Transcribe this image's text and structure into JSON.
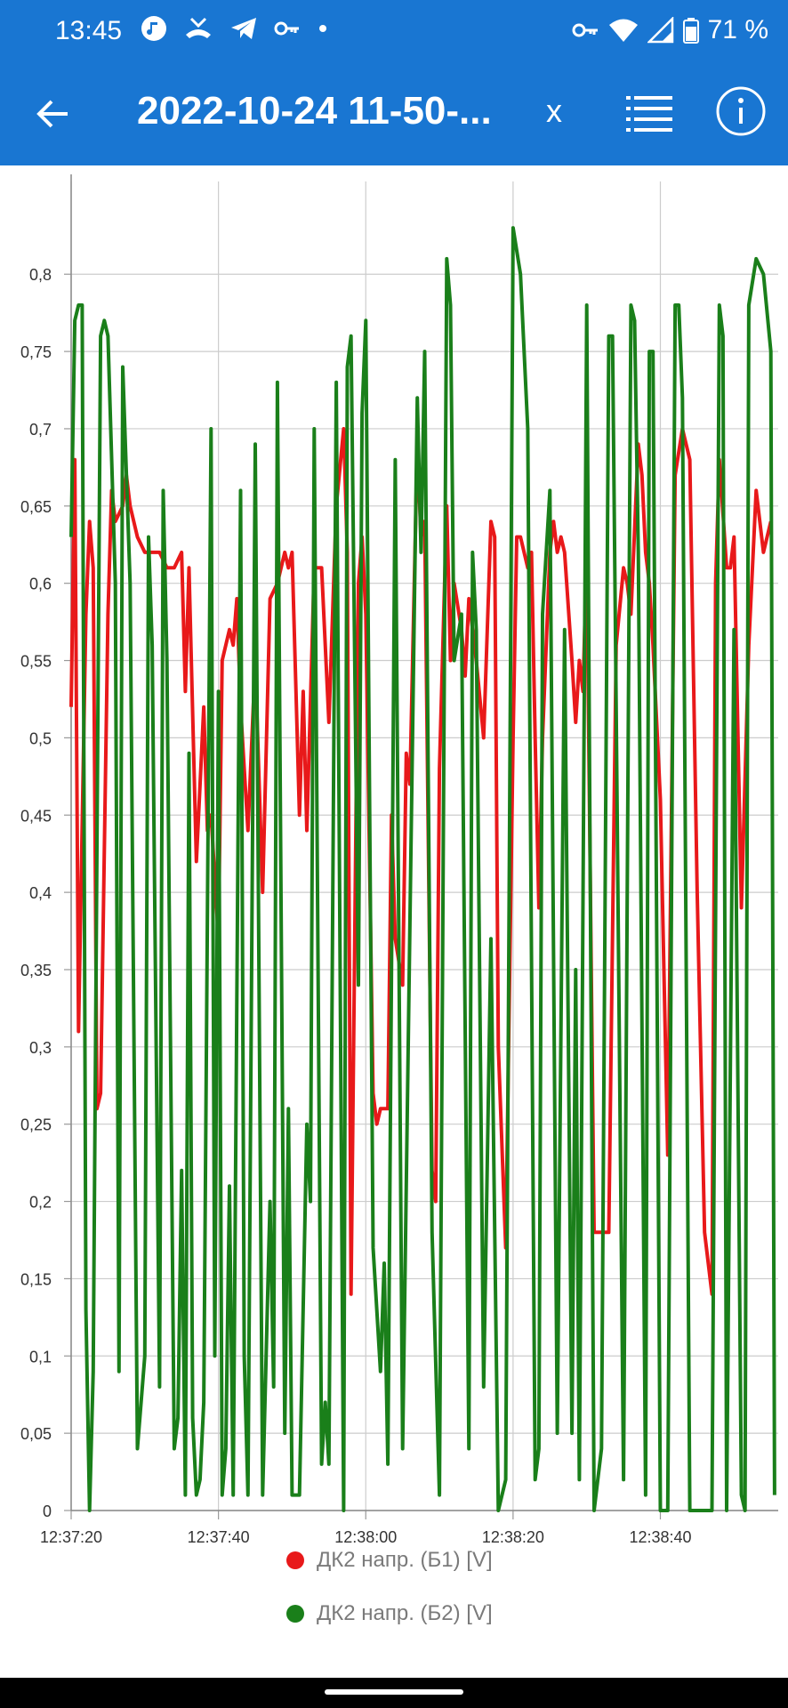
{
  "status_bar": {
    "time": "13:45",
    "left_icons": [
      "music-icon",
      "call-missed-icon",
      "telegram-icon",
      "key-icon",
      "dot-icon"
    ],
    "right_icons": [
      "vpn-key-icon",
      "wifi-icon",
      "signal-icon",
      "battery-icon"
    ],
    "battery": "71 %"
  },
  "app_bar": {
    "title": "2022-10-24 11-50-...",
    "close_label": "x",
    "icons": {
      "back": "arrow-back-icon",
      "list": "list-icon",
      "info": "info-icon"
    }
  },
  "chart_data": {
    "type": "line",
    "title": "",
    "xlabel": "",
    "ylabel": "",
    "x_ticks": [
      "12:37:20",
      "12:37:40",
      "12:38:00",
      "12:38:20",
      "12:38:40"
    ],
    "y_ticks": [
      "0",
      "0,05",
      "0,1",
      "0,15",
      "0,2",
      "0,25",
      "0,3",
      "0,35",
      "0,4",
      "0,45",
      "0,5",
      "0,55",
      "0,6",
      "0,65",
      "0,7",
      "0,75",
      "0,8"
    ],
    "xlim": [
      "12:37:20",
      "12:38:56"
    ],
    "ylim": [
      0,
      0.86
    ],
    "grid": true,
    "legend_position": "bottom",
    "series": [
      {
        "name": "ДК2 напр. (Б1) [V]",
        "color": "#e8191a",
        "points": [
          [
            "12:37:20",
            0.52
          ],
          [
            "12:37:20.5",
            0.68
          ],
          [
            "12:37:21",
            0.31
          ],
          [
            "12:37:22",
            0.58
          ],
          [
            "12:37:22.5",
            0.64
          ],
          [
            "12:37:23",
            0.61
          ],
          [
            "12:37:23.5",
            0.26
          ],
          [
            "12:37:24",
            0.27
          ],
          [
            "12:37:25",
            0.58
          ],
          [
            "12:37:25.5",
            0.66
          ],
          [
            "12:37:26",
            0.64
          ],
          [
            "12:37:27",
            0.65
          ],
          [
            "12:37:27.5",
            0.67
          ],
          [
            "12:37:28",
            0.65
          ],
          [
            "12:37:29",
            0.63
          ],
          [
            "12:37:30",
            0.62
          ],
          [
            "12:37:31",
            0.62
          ],
          [
            "12:37:32",
            0.62
          ],
          [
            "12:37:33",
            0.61
          ],
          [
            "12:37:34",
            0.61
          ],
          [
            "12:37:35",
            0.62
          ],
          [
            "12:37:35.5",
            0.53
          ],
          [
            "12:37:36",
            0.61
          ],
          [
            "12:37:37",
            0.42
          ],
          [
            "12:37:38",
            0.52
          ],
          [
            "12:37:38.5",
            0.44
          ],
          [
            "12:37:39",
            0.45
          ],
          [
            "12:37:40",
            0.37
          ],
          [
            "12:37:40.5",
            0.55
          ],
          [
            "12:37:41",
            0.56
          ],
          [
            "12:37:41.5",
            0.57
          ],
          [
            "12:37:42",
            0.56
          ],
          [
            "12:37:42.5",
            0.59
          ],
          [
            "12:37:43",
            0.52
          ],
          [
            "12:37:43.5",
            0.48
          ],
          [
            "12:37:44",
            0.44
          ],
          [
            "12:37:45",
            0.55
          ],
          [
            "12:37:46",
            0.4
          ],
          [
            "12:37:47",
            0.59
          ],
          [
            "12:37:48",
            0.6
          ],
          [
            "12:37:49",
            0.62
          ],
          [
            "12:37:49.5",
            0.61
          ],
          [
            "12:37:50",
            0.62
          ],
          [
            "12:37:51",
            0.45
          ],
          [
            "12:37:51.5",
            0.53
          ],
          [
            "12:37:52",
            0.44
          ],
          [
            "12:37:53",
            0.61
          ],
          [
            "12:37:54",
            0.61
          ],
          [
            "12:37:55",
            0.51
          ],
          [
            "12:37:56",
            0.65
          ],
          [
            "12:37:57",
            0.7
          ],
          [
            "12:37:57.5",
            0.62
          ],
          [
            "12:37:58",
            0.14
          ],
          [
            "12:37:59",
            0.6
          ],
          [
            "12:37:59.5",
            0.63
          ],
          [
            "12:38:00",
            0.58
          ],
          [
            "12:38:01",
            0.27
          ],
          [
            "12:38:01.5",
            0.25
          ],
          [
            "12:38:02",
            0.26
          ],
          [
            "12:38:03",
            0.26
          ],
          [
            "12:38:03.5",
            0.45
          ],
          [
            "12:38:04",
            0.37
          ],
          [
            "12:38:05",
            0.34
          ],
          [
            "12:38:05.5",
            0.49
          ],
          [
            "12:38:06",
            0.47
          ],
          [
            "12:38:07",
            0.69
          ],
          [
            "12:38:07.5",
            0.63
          ],
          [
            "12:38:08",
            0.64
          ],
          [
            "12:38:09",
            0.22
          ],
          [
            "12:38:09.5",
            0.2
          ],
          [
            "12:38:10",
            0.48
          ],
          [
            "12:38:11",
            0.65
          ],
          [
            "12:38:11.5",
            0.55
          ],
          [
            "12:38:12",
            0.6
          ],
          [
            "12:38:13",
            0.57
          ],
          [
            "12:38:13.5",
            0.54
          ],
          [
            "12:38:14",
            0.59
          ],
          [
            "12:38:15",
            0.55
          ],
          [
            "12:38:16",
            0.5
          ],
          [
            "12:38:17",
            0.64
          ],
          [
            "12:38:17.5",
            0.63
          ],
          [
            "12:38:18",
            0.3
          ],
          [
            "12:38:19",
            0.17
          ],
          [
            "12:38:20",
            0.5
          ],
          [
            "12:38:20.5",
            0.63
          ],
          [
            "12:38:21",
            0.63
          ],
          [
            "12:38:22",
            0.61
          ],
          [
            "12:38:22.5",
            0.62
          ],
          [
            "12:38:23",
            0.5
          ],
          [
            "12:38:23.5",
            0.39
          ],
          [
            "12:38:24",
            0.5
          ],
          [
            "12:38:25",
            0.62
          ],
          [
            "12:38:25.5",
            0.64
          ],
          [
            "12:38:26",
            0.62
          ],
          [
            "12:38:26.5",
            0.63
          ],
          [
            "12:38:27",
            0.62
          ],
          [
            "12:38:28",
            0.55
          ],
          [
            "12:38:28.5",
            0.51
          ],
          [
            "12:38:29",
            0.55
          ],
          [
            "12:38:29.5",
            0.53
          ],
          [
            "12:38:30",
            0.62
          ],
          [
            "12:38:31",
            0.18
          ],
          [
            "12:38:32",
            0.18
          ],
          [
            "12:38:33",
            0.18
          ],
          [
            "12:38:34",
            0.56
          ],
          [
            "12:38:35",
            0.61
          ],
          [
            "12:38:35.5",
            0.6
          ],
          [
            "12:38:36",
            0.58
          ],
          [
            "12:38:37",
            0.69
          ],
          [
            "12:38:37.5",
            0.67
          ],
          [
            "12:38:38",
            0.62
          ],
          [
            "12:38:38.5",
            0.6
          ],
          [
            "12:38:39",
            0.56
          ],
          [
            "12:38:40",
            0.46
          ],
          [
            "12:38:41",
            0.23
          ],
          [
            "12:38:42",
            0.67
          ],
          [
            "12:38:43",
            0.7
          ],
          [
            "12:38:44",
            0.68
          ],
          [
            "12:38:45",
            0.4
          ],
          [
            "12:38:46",
            0.18
          ],
          [
            "12:38:47",
            0.14
          ],
          [
            "12:38:47.5",
            0.6
          ],
          [
            "12:38:48",
            0.68
          ],
          [
            "12:38:49",
            0.61
          ],
          [
            "12:38:49.5",
            0.61
          ],
          [
            "12:38:50",
            0.63
          ],
          [
            "12:38:51",
            0.39
          ],
          [
            "12:38:52",
            0.56
          ],
          [
            "12:38:53",
            0.66
          ],
          [
            "12:38:54",
            0.62
          ],
          [
            "12:38:55",
            0.64
          ]
        ]
      },
      {
        "name": "ДК2 напр. (Б2) [V]",
        "color": "#1a7f1a",
        "points": [
          [
            "12:37:20",
            0.63
          ],
          [
            "12:37:20.5",
            0.77
          ],
          [
            "12:37:21",
            0.78
          ],
          [
            "12:37:21.5",
            0.78
          ],
          [
            "12:37:22",
            0.13
          ],
          [
            "12:37:22.5",
            0.0
          ],
          [
            "12:37:23",
            0.09
          ],
          [
            "12:37:24",
            0.76
          ],
          [
            "12:37:24.5",
            0.77
          ],
          [
            "12:37:25",
            0.76
          ],
          [
            "12:37:26",
            0.6
          ],
          [
            "12:37:26.5",
            0.09
          ],
          [
            "12:37:27",
            0.74
          ],
          [
            "12:37:28",
            0.6
          ],
          [
            "12:37:29",
            0.04
          ],
          [
            "12:37:30",
            0.1
          ],
          [
            "12:37:30.5",
            0.63
          ],
          [
            "12:37:31",
            0.56
          ],
          [
            "12:37:32",
            0.08
          ],
          [
            "12:37:32.5",
            0.66
          ],
          [
            "12:37:33",
            0.55
          ],
          [
            "12:37:34",
            0.04
          ],
          [
            "12:37:34.5",
            0.06
          ],
          [
            "12:37:35",
            0.22
          ],
          [
            "12:37:35.5",
            0.01
          ],
          [
            "12:37:36",
            0.49
          ],
          [
            "12:37:36.5",
            0.06
          ],
          [
            "12:37:37",
            0.01
          ],
          [
            "12:37:37.5",
            0.02
          ],
          [
            "12:37:38",
            0.07
          ],
          [
            "12:37:39",
            0.7
          ],
          [
            "12:37:39.5",
            0.1
          ],
          [
            "12:37:40",
            0.53
          ],
          [
            "12:37:40.5",
            0.01
          ],
          [
            "12:37:41",
            0.04
          ],
          [
            "12:37:41.5",
            0.21
          ],
          [
            "12:37:42",
            0.01
          ],
          [
            "12:37:43",
            0.66
          ],
          [
            "12:37:43.5",
            0.1
          ],
          [
            "12:37:44",
            0.01
          ],
          [
            "12:37:45",
            0.69
          ],
          [
            "12:37:46",
            0.01
          ],
          [
            "12:37:47",
            0.2
          ],
          [
            "12:37:47.5",
            0.08
          ],
          [
            "12:37:48",
            0.73
          ],
          [
            "12:37:49",
            0.05
          ],
          [
            "12:37:49.5",
            0.26
          ],
          [
            "12:37:50",
            0.01
          ],
          [
            "12:37:51",
            0.01
          ],
          [
            "12:37:52",
            0.25
          ],
          [
            "12:37:52.5",
            0.2
          ],
          [
            "12:37:53",
            0.7
          ],
          [
            "12:37:54",
            0.03
          ],
          [
            "12:37:54.5",
            0.07
          ],
          [
            "12:37:55",
            0.03
          ],
          [
            "12:37:56",
            0.73
          ],
          [
            "12:37:57",
            0.0
          ],
          [
            "12:37:57.5",
            0.74
          ],
          [
            "12:37:58",
            0.76
          ],
          [
            "12:37:59",
            0.34
          ],
          [
            "12:37:59.5",
            0.71
          ],
          [
            "12:38:00",
            0.77
          ],
          [
            "12:38:01",
            0.17
          ],
          [
            "12:38:02",
            0.09
          ],
          [
            "12:38:02.5",
            0.16
          ],
          [
            "12:38:03",
            0.03
          ],
          [
            "12:38:04",
            0.68
          ],
          [
            "12:38:05",
            0.04
          ],
          [
            "12:38:06",
            0.38
          ],
          [
            "12:38:07",
            0.72
          ],
          [
            "12:38:07.5",
            0.62
          ],
          [
            "12:38:08",
            0.75
          ],
          [
            "12:38:09",
            0.18
          ],
          [
            "12:38:10",
            0.01
          ],
          [
            "12:38:11",
            0.81
          ],
          [
            "12:38:11.5",
            0.78
          ],
          [
            "12:38:12",
            0.55
          ],
          [
            "12:38:13",
            0.58
          ],
          [
            "12:38:14",
            0.04
          ],
          [
            "12:38:14.5",
            0.62
          ],
          [
            "12:38:15",
            0.57
          ],
          [
            "12:38:16",
            0.08
          ],
          [
            "12:38:17",
            0.37
          ],
          [
            "12:38:18",
            0.0
          ],
          [
            "12:38:19",
            0.02
          ],
          [
            "12:38:20",
            0.83
          ],
          [
            "12:38:21",
            0.8
          ],
          [
            "12:38:22",
            0.7
          ],
          [
            "12:38:23",
            0.02
          ],
          [
            "12:38:23.5",
            0.04
          ],
          [
            "12:38:24",
            0.58
          ],
          [
            "12:38:25",
            0.66
          ],
          [
            "12:38:26",
            0.05
          ],
          [
            "12:38:27",
            0.57
          ],
          [
            "12:38:28",
            0.05
          ],
          [
            "12:38:28.5",
            0.35
          ],
          [
            "12:38:29",
            0.02
          ],
          [
            "12:38:30",
            0.78
          ],
          [
            "12:38:31",
            0.0
          ],
          [
            "12:38:32",
            0.04
          ],
          [
            "12:38:33",
            0.76
          ],
          [
            "12:38:33.5",
            0.76
          ],
          [
            "12:38:34",
            0.52
          ],
          [
            "12:38:35",
            0.02
          ],
          [
            "12:38:36",
            0.78
          ],
          [
            "12:38:36.5",
            0.77
          ],
          [
            "12:38:37",
            0.62
          ],
          [
            "12:38:38",
            0.01
          ],
          [
            "12:38:38.5",
            0.75
          ],
          [
            "12:38:39",
            0.75
          ],
          [
            "12:38:40",
            0.0
          ],
          [
            "12:38:41",
            0.0
          ],
          [
            "12:38:42",
            0.78
          ],
          [
            "12:38:42.5",
            0.78
          ],
          [
            "12:38:43",
            0.72
          ],
          [
            "12:38:44",
            0.0
          ],
          [
            "12:38:45",
            0.0
          ],
          [
            "12:38:46",
            0.0
          ],
          [
            "12:38:47",
            0.0
          ],
          [
            "12:38:48",
            0.78
          ],
          [
            "12:38:48.5",
            0.76
          ],
          [
            "12:38:49",
            0.0
          ],
          [
            "12:38:50",
            0.57
          ],
          [
            "12:38:51",
            0.01
          ],
          [
            "12:38:51.5",
            0.0
          ],
          [
            "12:38:52",
            0.78
          ],
          [
            "12:38:53",
            0.81
          ],
          [
            "12:38:54",
            0.8
          ],
          [
            "12:38:55",
            0.75
          ],
          [
            "12:38:55.5",
            0.01
          ]
        ]
      }
    ]
  }
}
